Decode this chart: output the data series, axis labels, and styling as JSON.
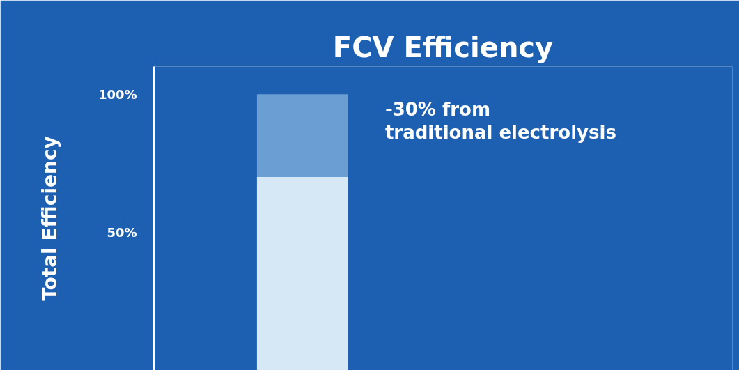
{
  "chart_data": {
    "type": "bar",
    "title": "FCV Efficiency",
    "ylabel": "Total Efficiency",
    "categories": [
      null
    ],
    "stacked": true,
    "series": [
      {
        "color": "#d6e7f5",
        "values": [
          70
        ]
      },
      {
        "color": "#6b9fd3",
        "values": [
          30
        ]
      }
    ],
    "ylim": [
      0,
      110
    ],
    "yticks": [
      {
        "value": 50,
        "label": "50%"
      },
      {
        "value": 100,
        "label": "100%"
      }
    ],
    "annotations": [
      "-30% from\ntraditional electrolysis"
    ],
    "grid": false
  }
}
